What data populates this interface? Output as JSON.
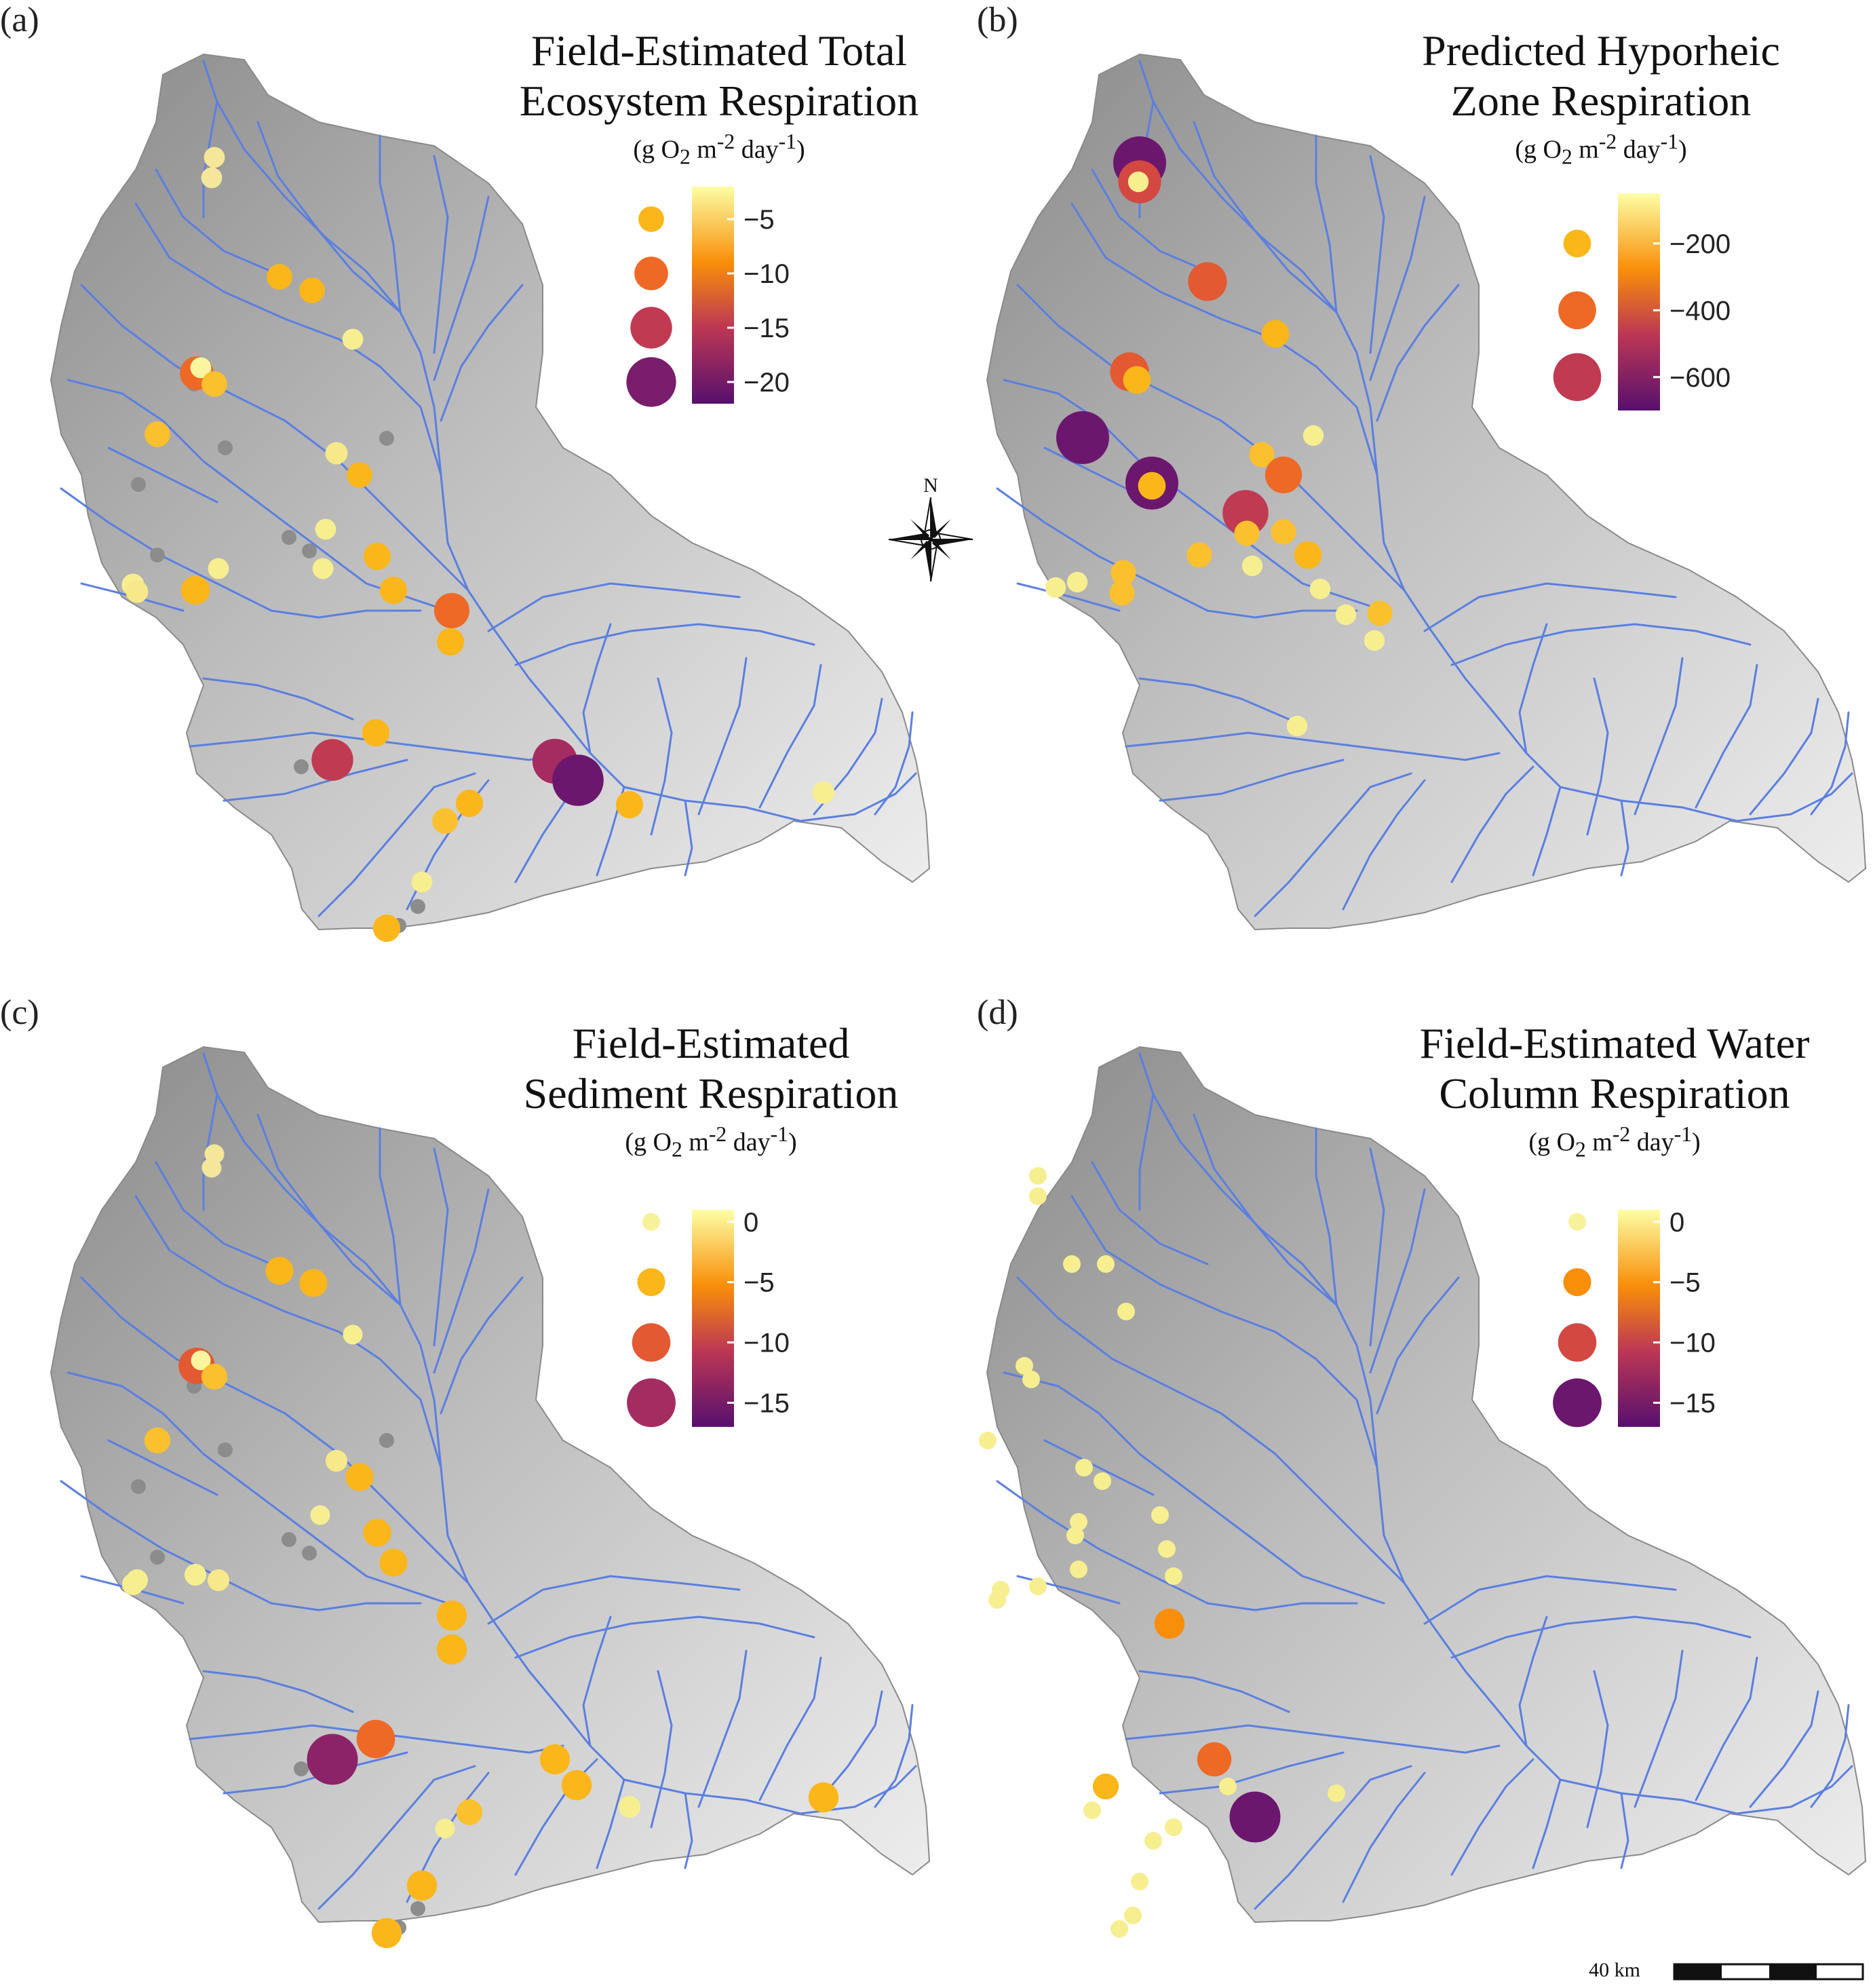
{
  "panels": [
    {
      "id": "a",
      "label": "(a)",
      "title_lines": [
        "Field-Estimated Total",
        "Ecosystem Respiration"
      ],
      "unit_text": "(g O2 m-2 day-1)",
      "legend": {
        "ticks": [
          -5,
          -10,
          -15,
          -20
        ],
        "min": -22,
        "max": -2,
        "dots": [
          {
            "value": -5,
            "color": "#fbb61a"
          },
          {
            "value": -10,
            "color": "#ed6925"
          },
          {
            "value": -15,
            "color": "#c03a51"
          },
          {
            "value": -20,
            "color": "#7a1d6d"
          }
        ]
      },
      "sites": [
        {
          "c": "#f4e79a",
          "v": -2
        },
        {
          "c": "#f4e79a",
          "v": -2
        },
        {
          "c": "#fbb61a",
          "v": -5
        },
        {
          "c": "#fbb61a",
          "v": -5
        },
        {
          "c": "#f7ee90",
          "v": -2
        },
        {
          "c": "#ed6925",
          "v": -10
        },
        {
          "c": "#fcf5a0",
          "v": -2
        },
        {
          "c": "#fbc02d",
          "v": -5
        },
        {
          "c": "#fbc02d",
          "v": -5
        },
        {
          "c": "#f7e88a",
          "v": -3
        },
        {
          "c": "#fbb61a",
          "v": -5
        },
        {
          "c": "#f7ee90",
          "v": -2
        },
        {
          "c": "#fbb61a",
          "v": -6
        },
        {
          "c": "#fbb61a",
          "v": -6
        },
        {
          "c": "#f7ee90",
          "v": -2
        },
        {
          "c": "#f7ee90",
          "v": -2
        },
        {
          "c": "#f7ee90",
          "v": -3
        },
        {
          "c": "#f7e88a",
          "v": -3
        },
        {
          "c": "#fbb61a",
          "v": -7
        },
        {
          "c": "#ed6925",
          "v": -11
        },
        {
          "c": "#fbb61a",
          "v": -6
        },
        {
          "c": "#fbb61a",
          "v": -6
        },
        {
          "c": "#c03a51",
          "v": -15
        },
        {
          "c": "#a52c60",
          "v": -17
        },
        {
          "c": "#6b176e",
          "v": -21
        },
        {
          "c": "#fbb61a",
          "v": -6
        },
        {
          "c": "#f7ee90",
          "v": -3
        },
        {
          "c": "#fbb61a",
          "v": -6
        },
        {
          "c": "#fbc02d",
          "v": -5
        },
        {
          "c": "#f7ee90",
          "v": -2
        },
        {
          "c": "#fbb61a",
          "v": -6
        }
      ]
    },
    {
      "id": "b",
      "label": "(b)",
      "title_lines": [
        "Predicted Hyporheic",
        "Zone Respiration"
      ],
      "unit_text": "(g O2 m-2 day-1)",
      "legend": {
        "ticks": [
          -200,
          -400,
          -600
        ],
        "min": -700,
        "max": -50,
        "dots": [
          {
            "value": -200,
            "color": "#fbb61a"
          },
          {
            "value": -400,
            "color": "#ed6925"
          },
          {
            "value": -600,
            "color": "#c03a51"
          }
        ]
      },
      "sites": [
        {
          "c": "#6b176e",
          "v": -700
        },
        {
          "c": "#d44842",
          "v": -500
        },
        {
          "c": "#f7ee90",
          "v": -60
        },
        {
          "c": "#e35932",
          "v": -420
        },
        {
          "c": "#fbb61a",
          "v": -200
        },
        {
          "c": "#e35932",
          "v": -420
        },
        {
          "c": "#fbb61a",
          "v": -200
        },
        {
          "c": "#6b176e",
          "v": -700
        },
        {
          "c": "#6b176e",
          "v": -700
        },
        {
          "c": "#fbb61a",
          "v": -200
        },
        {
          "c": "#fbc02d",
          "v": -150
        },
        {
          "c": "#f7ee90",
          "v": -60
        },
        {
          "c": "#ed6925",
          "v": -380
        },
        {
          "c": "#c03a51",
          "v": -560
        },
        {
          "c": "#fbc02d",
          "v": -150
        },
        {
          "c": "#fbc02d",
          "v": -150
        },
        {
          "c": "#fbc02d",
          "v": -150
        },
        {
          "c": "#fbb61a",
          "v": -200
        },
        {
          "c": "#f7ee90",
          "v": -60
        },
        {
          "c": "#fbc02d",
          "v": -150
        },
        {
          "c": "#f7ee90",
          "v": -60
        },
        {
          "c": "#f7ee90",
          "v": -60
        },
        {
          "c": "#fbc02d",
          "v": -150
        },
        {
          "c": "#f7ee90",
          "v": -60
        },
        {
          "c": "#f7ee90",
          "v": -60
        },
        {
          "c": "#fbc02d",
          "v": -150
        },
        {
          "c": "#f7ee90",
          "v": -60
        },
        {
          "c": "#f7ee90",
          "v": -60
        }
      ]
    },
    {
      "id": "c",
      "label": "(c)",
      "title_lines": [
        "Field-Estimated",
        "Sediment Respiration"
      ],
      "unit_text": "(g O2 m-2 day-1)",
      "legend": {
        "ticks": [
          0,
          -5,
          -10,
          -15
        ],
        "min": -17,
        "max": 1,
        "dots": [
          {
            "value": 0,
            "color": "#f7f19a"
          },
          {
            "value": -5,
            "color": "#fbb61a"
          },
          {
            "value": -10,
            "color": "#e35932"
          },
          {
            "value": -15,
            "color": "#a52c60"
          }
        ]
      },
      "sites": [
        {
          "c": "#f4e79a",
          "v": -1
        },
        {
          "c": "#f4e79a",
          "v": -1
        },
        {
          "c": "#fbb61a",
          "v": -5
        },
        {
          "c": "#fbb61a",
          "v": -5
        },
        {
          "c": "#f7ee90",
          "v": -1
        },
        {
          "c": "#e35932",
          "v": -9
        },
        {
          "c": "#fcf5a0",
          "v": -1
        },
        {
          "c": "#fbc02d",
          "v": -4
        },
        {
          "c": "#fbc02d",
          "v": -4
        },
        {
          "c": "#f7e88a",
          "v": -2
        },
        {
          "c": "#fbb61a",
          "v": -5
        },
        {
          "c": "#f7ee90",
          "v": -1
        },
        {
          "c": "#fbb61a",
          "v": -5
        },
        {
          "c": "#fbb61a",
          "v": -5
        },
        {
          "c": "#f7ee90",
          "v": -2
        },
        {
          "c": "#f7ee90",
          "v": -2
        },
        {
          "c": "#f7ee90",
          "v": -2
        },
        {
          "c": "#f7e88a",
          "v": -2
        },
        {
          "c": "#fbb61a",
          "v": -6
        },
        {
          "c": "#fbb61a",
          "v": -6
        },
        {
          "c": "#ed6925",
          "v": -10
        },
        {
          "c": "#8c2369",
          "v": -16
        },
        {
          "c": "#fbb61a",
          "v": -6
        },
        {
          "c": "#fbb61a",
          "v": -6
        },
        {
          "c": "#f7ee90",
          "v": -2
        },
        {
          "c": "#fbb61a",
          "v": -6
        },
        {
          "c": "#fbc02d",
          "v": -4
        },
        {
          "c": "#f7ee90",
          "v": -1
        },
        {
          "c": "#fbb61a",
          "v": -6
        },
        {
          "c": "#fbb61a",
          "v": -6
        }
      ]
    },
    {
      "id": "d",
      "label": "(d)",
      "title_lines": [
        "Field-Estimated Water",
        "Column Respiration"
      ],
      "unit_text": "(g O2 m-2 day-1)",
      "legend": {
        "ticks": [
          0,
          -5,
          -10,
          -15
        ],
        "min": -17,
        "max": 1,
        "dots": [
          {
            "value": 0,
            "color": "#f7f19a"
          },
          {
            "value": -5,
            "color": "#f98e09"
          },
          {
            "value": -10,
            "color": "#d44842"
          },
          {
            "value": -15,
            "color": "#6b176e"
          }
        ]
      },
      "sites": [
        {
          "c": "#f7ee90",
          "v": 0
        },
        {
          "c": "#f7ee90",
          "v": 0
        },
        {
          "c": "#f7ee90",
          "v": 0
        },
        {
          "c": "#f7ee90",
          "v": 0
        },
        {
          "c": "#f7ee90",
          "v": 0
        },
        {
          "c": "#f7ee90",
          "v": 0
        },
        {
          "c": "#f7ee90",
          "v": 0
        },
        {
          "c": "#f7ee90",
          "v": 0
        },
        {
          "c": "#f7ee90",
          "v": 0
        },
        {
          "c": "#f7ee90",
          "v": 0
        },
        {
          "c": "#f7ee90",
          "v": 0
        },
        {
          "c": "#f7ee90",
          "v": 0
        },
        {
          "c": "#f7ee90",
          "v": 0
        },
        {
          "c": "#f7ee90",
          "v": 0
        },
        {
          "c": "#f7ee90",
          "v": 0
        },
        {
          "c": "#f7ee90",
          "v": 0
        },
        {
          "c": "#f7ee90",
          "v": 0
        },
        {
          "c": "#f7ee90",
          "v": 0
        },
        {
          "c": "#f7ee90",
          "v": 0
        },
        {
          "c": "#f98e09",
          "v": -6
        },
        {
          "c": "#fbb61a",
          "v": -4
        },
        {
          "c": "#f7ee90",
          "v": 0
        },
        {
          "c": "#ed6925",
          "v": -8
        },
        {
          "c": "#f7ee90",
          "v": 0
        },
        {
          "c": "#6b176e",
          "v": -16
        },
        {
          "c": "#f7ee90",
          "v": 0
        },
        {
          "c": "#f7ee90",
          "v": 0
        },
        {
          "c": "#f7ee90",
          "v": 0
        },
        {
          "c": "#f7ee90",
          "v": 0
        },
        {
          "c": "#f7ee90",
          "v": 0
        },
        {
          "c": "#f7ee90",
          "v": 0
        }
      ]
    }
  ],
  "compass": {
    "north_label": "N"
  },
  "scalebar": {
    "label": "40 km"
  },
  "colors": {
    "river": "#5b7fe0",
    "basin_dark": "#8a8a8a",
    "basin_light": "#efefef",
    "no_data": "#8c8c8c"
  }
}
